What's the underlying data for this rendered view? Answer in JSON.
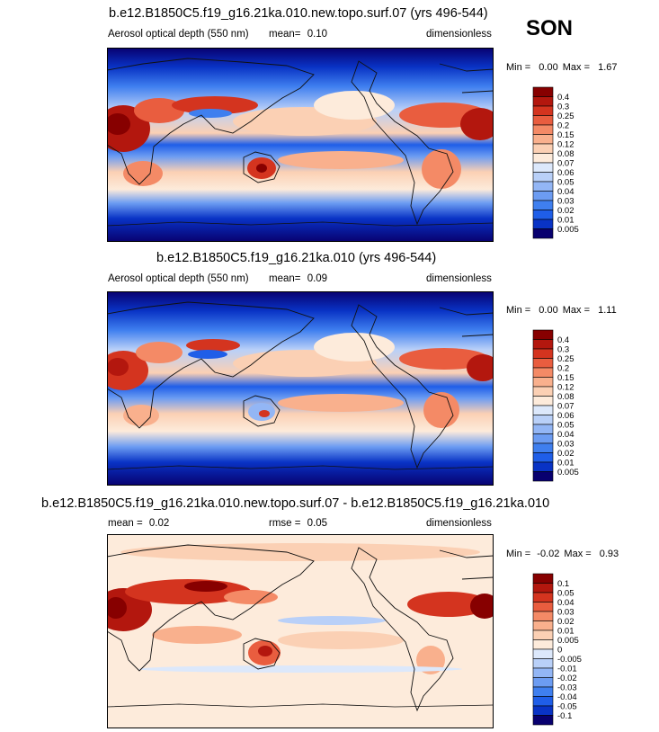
{
  "season": "SON",
  "colors": {
    "seq_scale": [
      "#08006f",
      "#0933c5",
      "#1f5ee8",
      "#3f7fef",
      "#6c9cf2",
      "#93b6f5",
      "#b9d0f8",
      "#dce8fb",
      "#fdebdb",
      "#fbd0b4",
      "#f9b08d",
      "#f48a66",
      "#e95d3f",
      "#d4341f",
      "#b3170e",
      "#870000"
    ],
    "diff_scale": [
      "#08006f",
      "#0933c5",
      "#1f5ee8",
      "#3f7fef",
      "#6c9cf2",
      "#93b6f5",
      "#b9d0f8",
      "#dce8fb",
      "#fdebdb",
      "#fbd0b4",
      "#f9b08d",
      "#f48a66",
      "#e95d3f",
      "#d4341f",
      "#b3170e",
      "#870000"
    ],
    "coast": "#111111"
  },
  "panels": [
    {
      "title": "b.e12.B1850C5.f19_g16.21ka.010.new.topo.surf.07 (yrs 496-544)",
      "left_label": "Aerosol optical depth (550 nm)",
      "mean_label": "mean=",
      "mean_value": "0.10",
      "units": "dimensionless",
      "min_label": "Min =",
      "min_value": "0.00",
      "max_label": "Max =",
      "max_value": "1.67",
      "colorbar": [
        "0.4",
        "0.3",
        "0.25",
        "0.2",
        "0.15",
        "0.12",
        "0.08",
        "0.07",
        "0.06",
        "0.05",
        "0.04",
        "0.03",
        "0.02",
        "0.01",
        "0.005"
      ]
    },
    {
      "title": "b.e12.B1850C5.f19_g16.21ka.010 (yrs 496-544)",
      "left_label": "Aerosol optical depth (550 nm)",
      "mean_label": "mean=",
      "mean_value": "0.09",
      "units": "dimensionless",
      "min_label": "Min =",
      "min_value": "0.00",
      "max_label": "Max =",
      "max_value": "1.11",
      "colorbar": [
        "0.4",
        "0.3",
        "0.25",
        "0.2",
        "0.15",
        "0.12",
        "0.08",
        "0.07",
        "0.06",
        "0.05",
        "0.04",
        "0.03",
        "0.02",
        "0.01",
        "0.005"
      ]
    },
    {
      "title": "b.e12.B1850C5.f19_g16.21ka.010.new.topo.surf.07 - b.e12.B1850C5.f19_g16.21ka.010",
      "mean_label": "mean =",
      "mean_value": "0.02",
      "rmse_label": "rmse =",
      "rmse_value": "0.05",
      "units": "dimensionless",
      "min_label": "Min =",
      "min_value": "-0.02",
      "max_label": "Max =",
      "max_value": "0.93",
      "colorbar": [
        "0.1",
        "0.05",
        "0.04",
        "0.03",
        "0.02",
        "0.01",
        "0.005",
        "0",
        "-0.005",
        "-0.01",
        "-0.02",
        "-0.03",
        "-0.04",
        "-0.05",
        "-0.1"
      ]
    }
  ],
  "chart_data": [
    {
      "type": "heatmap",
      "title": "b.e12.B1850C5.f19_g16.21ka.010.new.topo.surf.07 (yrs 496-544)",
      "variable": "Aerosol optical depth (550 nm)",
      "units": "dimensionless",
      "mean": 0.1,
      "min": 0.0,
      "max": 1.67,
      "levels": [
        0.005,
        0.01,
        0.02,
        0.03,
        0.04,
        0.05,
        0.06,
        0.07,
        0.08,
        0.12,
        0.15,
        0.2,
        0.25,
        0.3,
        0.4
      ]
    },
    {
      "type": "heatmap",
      "title": "b.e12.B1850C5.f19_g16.21ka.010 (yrs 496-544)",
      "variable": "Aerosol optical depth (550 nm)",
      "units": "dimensionless",
      "mean": 0.09,
      "min": 0.0,
      "max": 1.11,
      "levels": [
        0.005,
        0.01,
        0.02,
        0.03,
        0.04,
        0.05,
        0.06,
        0.07,
        0.08,
        0.12,
        0.15,
        0.2,
        0.25,
        0.3,
        0.4
      ]
    },
    {
      "type": "heatmap",
      "title": "b.e12.B1850C5.f19_g16.21ka.010.new.topo.surf.07 - b.e12.B1850C5.f19_g16.21ka.010",
      "units": "dimensionless",
      "mean": 0.02,
      "rmse": 0.05,
      "min": -0.02,
      "max": 0.93,
      "levels": [
        -0.1,
        -0.05,
        -0.04,
        -0.03,
        -0.02,
        -0.01,
        -0.005,
        0,
        0.005,
        0.01,
        0.02,
        0.03,
        0.04,
        0.05,
        0.1
      ]
    }
  ]
}
